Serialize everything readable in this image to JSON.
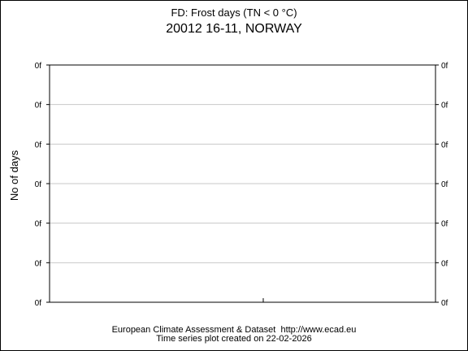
{
  "chart_data": {
    "type": "line",
    "title": "FD: Frost days (TN < 0 °C)",
    "subtitle": "20012 16-11, NORWAY",
    "xlabel": "",
    "ylabel": "No of days",
    "y_tick_labels": [
      "0f",
      "0f",
      "0f",
      "0f",
      "0f",
      "0f",
      "0f"
    ],
    "y_tick_labels_right": [
      "0f",
      "0f",
      "0f",
      "0f",
      "0f",
      "0f",
      "0f"
    ],
    "x_tick_labels": [],
    "series": [],
    "grid": true,
    "legend": "none"
  },
  "footer": {
    "line1": "European Climate Assessment & Dataset  http://www.ecad.eu",
    "line2": "Time series plot created on 22-02-2026"
  },
  "colors": {
    "background": "#ffffff",
    "axis": "#000000",
    "grid": "#c8c8c8"
  }
}
